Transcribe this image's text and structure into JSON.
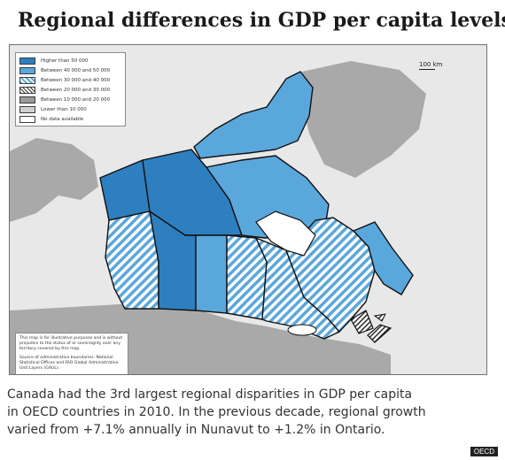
{
  "title": "Regional differences in GDP per capita levels",
  "legend": [
    {
      "label": "Higher than 50 000",
      "fill": "#2e7fc0",
      "pattern": "solid"
    },
    {
      "label": "Between 40 000 and 50 000",
      "fill": "#5aa7dc",
      "pattern": "solid"
    },
    {
      "label": "Between 30 000 and 40 000",
      "fill": "#5aa7dc",
      "pattern": "hatch-blue"
    },
    {
      "label": "Between 20 000 and 30 000",
      "fill": "#ffffff",
      "pattern": "hatch-black"
    },
    {
      "label": "Between 10 000 and 20 000",
      "fill": "#9a9a9a",
      "pattern": "solid"
    },
    {
      "label": "Lower than 10 000",
      "fill": "#cfcfcf",
      "pattern": "solid"
    },
    {
      "label": "No data available",
      "fill": "#ffffff",
      "pattern": "solid"
    }
  ],
  "scale": {
    "label": "100 km"
  },
  "disclaimer": {
    "text1": "This map is for illustrative purposes and is without prejudice to the status of or sovereignty over any territory covered by this map.",
    "text2": "Source of administrative boundaries: National Statistical Offices and FAO Global Administrative Unit Layers (GAUL)."
  },
  "caption": {
    "line1": "Canada had the 3rd largest regional disparities in GDP per capita",
    "line2": "in OECD countries in 2010. In the previous decade, regional growth",
    "line3": "varied from +7.1% annually in Nunavut to +1.2% in Ontario."
  },
  "watermark": "OECD",
  "colors": {
    "dark_blue": "#2e7fc0",
    "light_blue": "#5aa7dc",
    "land_grey": "#a9a9a9",
    "sea": "#e8e8e8",
    "border": "#111111"
  }
}
